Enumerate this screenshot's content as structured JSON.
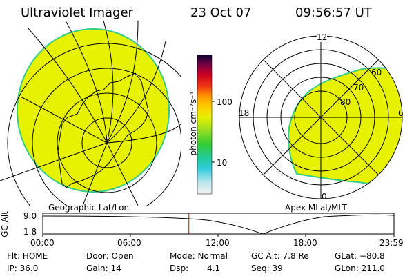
{
  "header": {
    "instrument": "Ultraviolet Imager",
    "date": "23 Oct 07",
    "time": "09:56:57 UT"
  },
  "geo_panel": {
    "label": "Geographic Lat/Lon"
  },
  "mag_panel": {
    "label": "Apex MLat/MLT",
    "mlt_labels": [
      "12",
      "18",
      "6",
      "0"
    ],
    "mlat_labels": [
      "60",
      "70",
      "80"
    ]
  },
  "colorbar": {
    "unit_label": "photon cm⁻²s⁻¹",
    "tick_100": "100",
    "tick_10": "10"
  },
  "altitude_plot": {
    "axis_label": "GC Alt",
    "y_max": "9.0",
    "y_min": "1.8",
    "x_ticks": [
      "00:00",
      "06:00",
      "12:00",
      "18:00",
      "23:59"
    ],
    "current_time_fraction": 0.416
  },
  "status": {
    "flt": "Flt: HOME",
    "ip": "IP: 36.0",
    "door": "Door: Open",
    "gain": "Gain: 14",
    "mode": "Mode: Normal",
    "dsp": "Dsp:",
    "dsp_value": "4.1",
    "gc_alt": "GC Alt: 7.8 Re",
    "seq": "Seq: 39",
    "glat": "GLat: −80.8",
    "glon": "GLon: 211.0"
  },
  "colors": {
    "aurora_fill": "#e6f200",
    "edge": "#33cc88",
    "time_marker": "#dd0000"
  }
}
